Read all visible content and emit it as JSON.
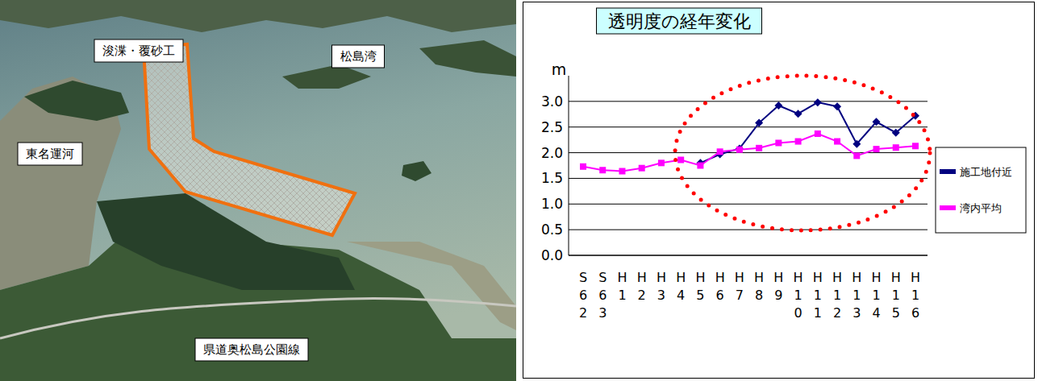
{
  "chart_data": {
    "type": "line",
    "title": "透明度の経年変化",
    "y_label": "m",
    "categories": [
      "S62",
      "S63",
      "H1",
      "H2",
      "H3",
      "H4",
      "H5",
      "H6",
      "H7",
      "H8",
      "H9",
      "H10",
      "H11",
      "H12",
      "H13",
      "H14",
      "H15",
      "H16"
    ],
    "series": [
      {
        "name": "施工地付近",
        "color": "#000080",
        "marker": "diamond",
        "line_style": "solid",
        "values": [
          null,
          null,
          null,
          null,
          null,
          null,
          1.8,
          1.97,
          2.08,
          2.58,
          2.92,
          2.76,
          2.98,
          2.9,
          2.17,
          2.6,
          2.39,
          2.72
        ]
      },
      {
        "name": "湾内平均",
        "color": "#ff00ff",
        "marker": "square",
        "line_style": "solid",
        "values": [
          1.73,
          1.66,
          1.64,
          1.7,
          1.8,
          1.86,
          1.75,
          2.02,
          2.06,
          2.09,
          2.19,
          2.22,
          2.37,
          2.22,
          1.94,
          2.07,
          2.1,
          2.13
        ]
      }
    ],
    "ylim": [
      0,
      3.5
    ],
    "yticks": [
      {
        "value": 0,
        "label": "0.0"
      },
      {
        "value": 0.5,
        "label": "0.5"
      },
      {
        "value": 1,
        "label": "1.0"
      },
      {
        "value": 1.5,
        "label": "1.5"
      },
      {
        "value": 2,
        "label": "2.0"
      },
      {
        "value": 2.5,
        "label": "2.5"
      },
      {
        "value": 3,
        "label": "3.0"
      }
    ],
    "grid": true,
    "legend": "right"
  },
  "photo": {
    "labels": [
      "浚渫・覆砂工",
      "松島湾",
      "東名運河",
      "県道奥松島公園線"
    ]
  }
}
